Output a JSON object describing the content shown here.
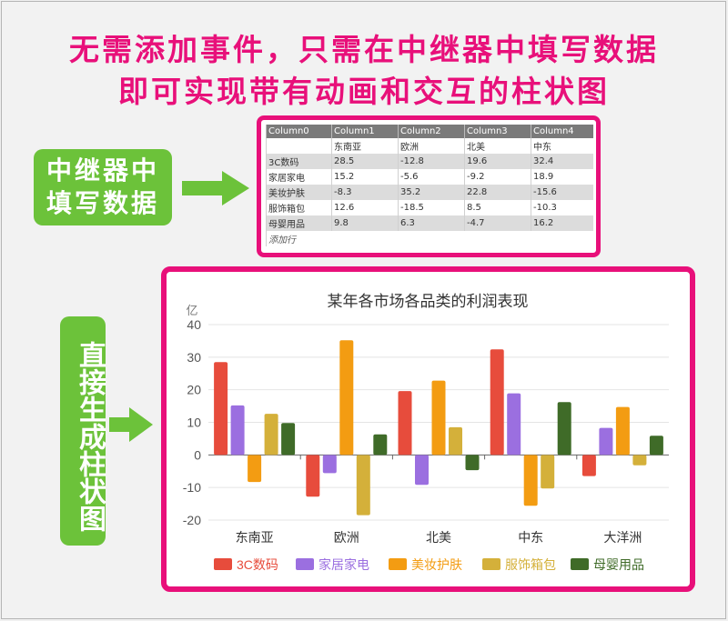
{
  "headline": {
    "line1": "无需添加事件，只需在中继器中填写数据",
    "line2": "即可实现带有动画和交互的柱状图"
  },
  "labels": {
    "fill_data": "中继器中填写数据",
    "fill_data_l1": "中继器中",
    "fill_data_l2": "填写数据",
    "generate": "直接生成柱状图"
  },
  "colors": {
    "accent": "#e8107a",
    "label_green": "#6cc23a",
    "series": [
      "#e74c3c",
      "#9b6fe0",
      "#f39c12",
      "#d4b03a",
      "#3f6b28"
    ]
  },
  "repeater": {
    "headers": [
      "Column0",
      "Column1",
      "Column2",
      "Column3",
      "Column4"
    ],
    "rows": [
      [
        "",
        "东南亚",
        "欧洲",
        "北美",
        "中东"
      ],
      [
        "3C数码",
        "28.5",
        "-12.8",
        "19.6",
        "32.4"
      ],
      [
        "家居家电",
        "15.2",
        "-5.6",
        "-9.2",
        "18.9"
      ],
      [
        "美妆护肤",
        "-8.3",
        "35.2",
        "22.8",
        "-15.6"
      ],
      [
        "服饰箱包",
        "12.6",
        "-18.5",
        "8.5",
        "-10.3"
      ],
      [
        "母婴用品",
        "9.8",
        "6.3",
        "-4.7",
        "16.2"
      ]
    ],
    "add_row": "添加行"
  },
  "chart_data": {
    "type": "bar",
    "title": "某年各市场各品类的利润表现",
    "ylabel": "亿",
    "ylim": [
      -20,
      40
    ],
    "yticks": [
      40,
      30,
      20,
      10,
      0,
      -10,
      -20
    ],
    "categories": [
      "东南亚",
      "欧洲",
      "北美",
      "中东",
      "大洋洲"
    ],
    "series": [
      {
        "name": "3C数码",
        "values": [
          28.5,
          -12.8,
          19.6,
          32.4,
          -6.5
        ]
      },
      {
        "name": "家居家电",
        "values": [
          15.2,
          -5.6,
          -9.2,
          18.9,
          8.3
        ]
      },
      {
        "name": "美妆护肤",
        "values": [
          -8.3,
          35.2,
          22.8,
          -15.6,
          14.7
        ]
      },
      {
        "name": "服饰箱包",
        "values": [
          12.6,
          -18.5,
          8.5,
          -10.3,
          -3.2
        ]
      },
      {
        "name": "母婴用品",
        "values": [
          9.8,
          6.3,
          -4.7,
          16.2,
          5.9
        ]
      }
    ],
    "grid": true,
    "legend_position": "bottom"
  }
}
